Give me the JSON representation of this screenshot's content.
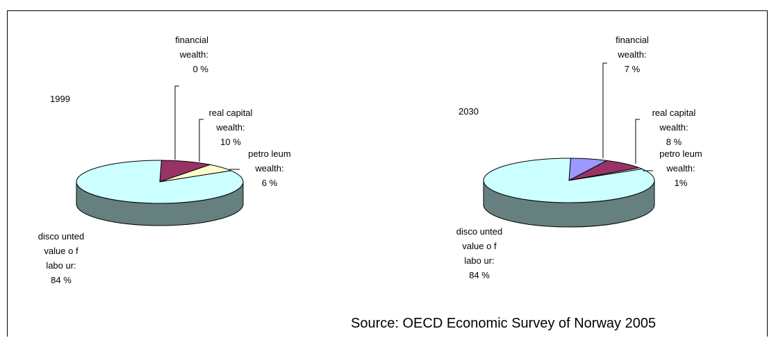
{
  "source_note": "Source: OECD Economic Survey of Norway 2005",
  "colors": {
    "financial": "#9999ff",
    "real_capital": "#993366",
    "petroleum": "#ffffcc",
    "labour": "#ccffff",
    "side": "#668080"
  },
  "chart_data": [
    {
      "type": "pie",
      "title": "1999",
      "series": [
        {
          "label_lines": [
            "financial",
            "wealth:",
            "0 %"
          ],
          "value": 0,
          "color": "#9999ff"
        },
        {
          "label_lines": [
            "real capital",
            "wealth:",
            "10 %"
          ],
          "value": 10,
          "color": "#993366"
        },
        {
          "label_lines": [
            "petro leum",
            "wealth:",
            "6 %"
          ],
          "value": 6,
          "color": "#ffffcc"
        },
        {
          "label_lines": [
            "disco unted",
            "value o f",
            "labo ur:",
            "84 %"
          ],
          "value": 84,
          "color": "#ccffff"
        }
      ]
    },
    {
      "type": "pie",
      "title": "2030",
      "series": [
        {
          "label_lines": [
            "financial",
            "wealth:",
            "7 %"
          ],
          "value": 7,
          "color": "#9999ff"
        },
        {
          "label_lines": [
            "real capital",
            "wealth:",
            "8 %"
          ],
          "value": 8,
          "color": "#993366"
        },
        {
          "label_lines": [
            "petro leum",
            "wealth:",
            "1%"
          ],
          "value": 1,
          "color": "#ffffcc"
        },
        {
          "label_lines": [
            "disco unted",
            "value o f",
            "labo ur:",
            "84 %"
          ],
          "value": 84,
          "color": "#ccffff"
        }
      ]
    }
  ]
}
